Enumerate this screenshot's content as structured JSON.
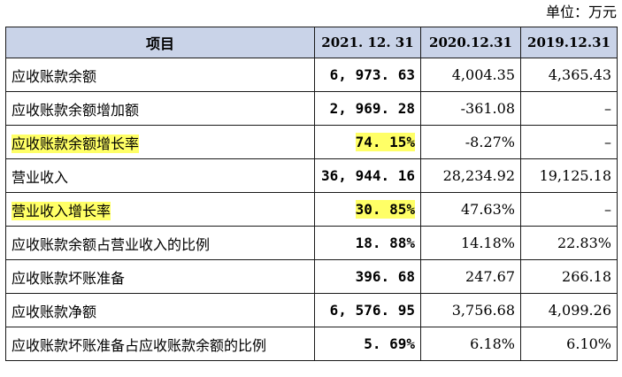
{
  "unit_label": "单位：万元",
  "table": {
    "headers": [
      "项目",
      "2021. 12. 31",
      "2020.12.31",
      "2019.12.31"
    ],
    "rows": [
      {
        "item": "应收账款余额",
        "v2021": "6, 973. 63",
        "v2020": "4,004.35",
        "v2019": "4,365.43",
        "highlight": false
      },
      {
        "item": "应收账款余额增加额",
        "v2021": "2, 969. 28",
        "v2020": "-361.08",
        "v2019": "–",
        "highlight": false
      },
      {
        "item": "应收账款余额增长率",
        "v2021": "74. 15%",
        "v2020": "-8.27%",
        "v2019": "–",
        "highlight": true
      },
      {
        "item": "营业收入",
        "v2021": "36, 944. 16",
        "v2020": "28,234.92",
        "v2019": "19,125.18",
        "highlight": false
      },
      {
        "item": "营业收入增长率",
        "v2021": "30. 85%",
        "v2020": "47.63%",
        "v2019": "–",
        "highlight": true
      },
      {
        "item": "应收账款余额占营业收入的比例",
        "v2021": "18. 88%",
        "v2020": "14.18%",
        "v2019": "22.83%",
        "highlight": false
      },
      {
        "item": "应收账款坏账准备",
        "v2021": "396. 68",
        "v2020": "247.67",
        "v2019": "266.18",
        "highlight": false
      },
      {
        "item": "应收账款净额",
        "v2021": "6, 576. 95",
        "v2020": "3,756.68",
        "v2019": "4,099.26",
        "highlight": false
      },
      {
        "item": "应收账款坏账准备占应收账款余额的比例",
        "v2021": "5. 69%",
        "v2020": "6.18%",
        "v2019": "6.10%",
        "highlight": false
      }
    ]
  },
  "colors": {
    "header_bg": "#c9d3e8",
    "highlight": "#ffff66",
    "border": "#1a1a1a"
  }
}
